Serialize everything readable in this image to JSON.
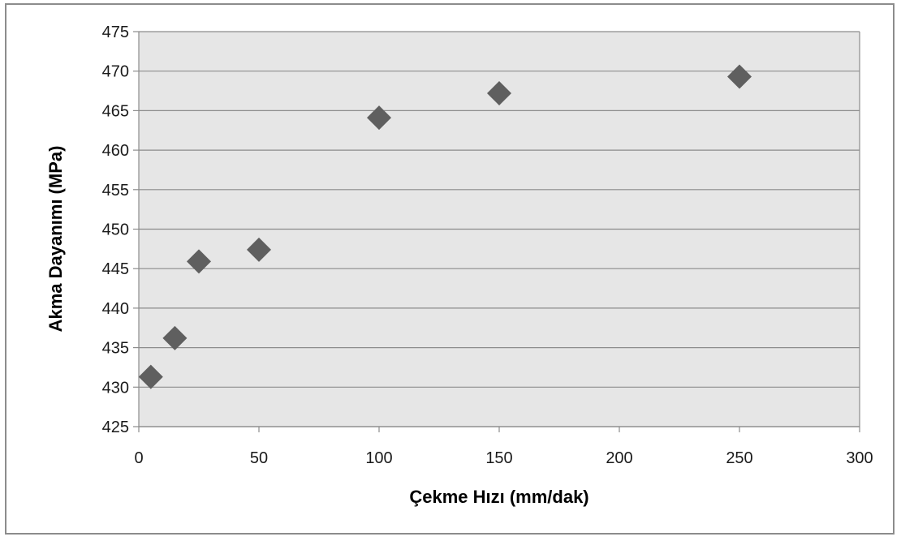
{
  "chart_data": {
    "type": "scatter",
    "title": "",
    "xlabel": "Çekme Hızı (mm/dak)",
    "ylabel": "Akma Dayanımı (MPa)",
    "xlim": [
      0,
      300
    ],
    "ylim": [
      425,
      475
    ],
    "x_ticks": [
      0,
      50,
      100,
      150,
      200,
      250,
      300
    ],
    "y_ticks": [
      425,
      430,
      435,
      440,
      445,
      450,
      455,
      460,
      465,
      470,
      475
    ],
    "grid": "horizontal",
    "legend": "none",
    "marker": "diamond",
    "series": [
      {
        "points": [
          {
            "x": 5,
            "y": 431.3
          },
          {
            "x": 15,
            "y": 436.2
          },
          {
            "x": 25,
            "y": 445.9
          },
          {
            "x": 50,
            "y": 447.4
          },
          {
            "x": 100,
            "y": 464.1
          },
          {
            "x": 150,
            "y": 467.2
          },
          {
            "x": 250,
            "y": 469.3
          }
        ]
      }
    ],
    "colors": {
      "plot_background": "#e6e6e6",
      "gridline": "#8c8c8c",
      "marker": "#5f5f5f"
    }
  }
}
